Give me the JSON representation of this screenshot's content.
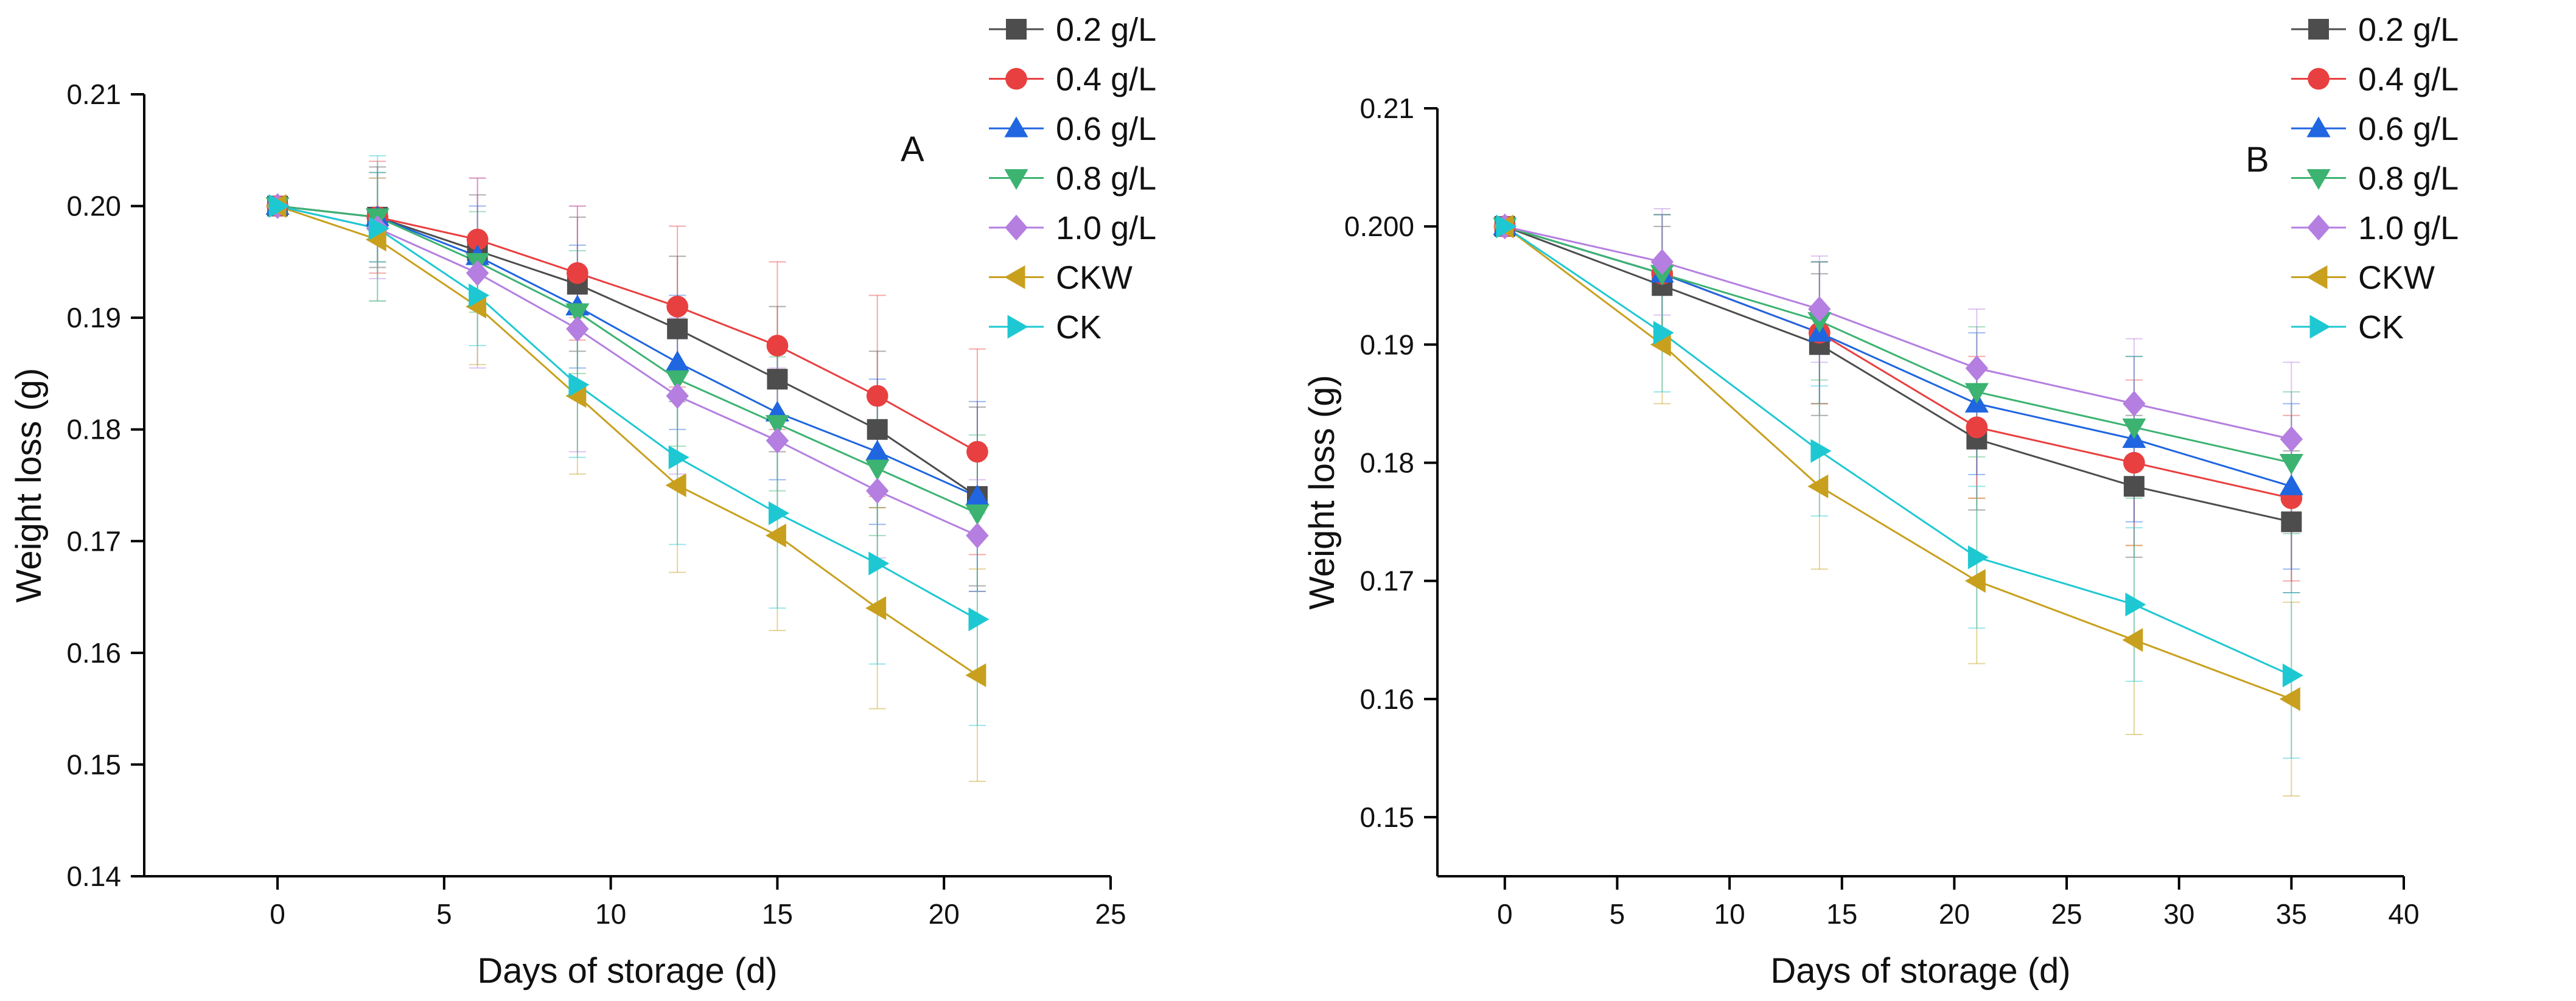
{
  "figure": {
    "panels_count": 2
  },
  "series_styles": [
    {
      "name": "0.2 g/L",
      "color": "#4d4d4d",
      "marker": "square"
    },
    {
      "name": "0.4 g/L",
      "color": "#e84040",
      "marker": "circle"
    },
    {
      "name": "0.6 g/L",
      "color": "#1f66e0",
      "marker": "triangle-up"
    },
    {
      "name": "0.8 g/L",
      "color": "#3cb371",
      "marker": "triangle-down"
    },
    {
      "name": "1.0 g/L",
      "color": "#b47fe0",
      "marker": "diamond"
    },
    {
      "name": "CKW",
      "color": "#c8a01e",
      "marker": "triangle-left"
    },
    {
      "name": "CK",
      "color": "#1ec8d2",
      "marker": "triangle-right"
    }
  ],
  "chart_data": [
    {
      "type": "line",
      "panel_label": "A",
      "title": "",
      "xlabel": "Days of storage (d)",
      "ylabel": "Weight loss (g)",
      "xlim": [
        -4,
        25
      ],
      "ylim": [
        0.14,
        0.21
      ],
      "xticks": [
        0,
        5,
        10,
        15,
        20,
        25
      ],
      "yticks": [
        0.14,
        0.15,
        0.16,
        0.17,
        0.18,
        0.19,
        0.2,
        0.21
      ],
      "xtick_labels": [
        "0",
        "5",
        "10",
        "15",
        "20",
        "25"
      ],
      "ytick_labels": [
        "0.14",
        "0.15",
        "0.16",
        "0.17",
        "0.18",
        "0.19",
        "0.20",
        "0.21"
      ],
      "legend_position": "top-right",
      "grid": false,
      "x": [
        0,
        3,
        6,
        9,
        12,
        15,
        18,
        21
      ],
      "series": [
        {
          "name": "0.2 g/L",
          "values": [
            0.2,
            0.199,
            0.196,
            0.193,
            0.189,
            0.1845,
            0.18,
            0.174
          ],
          "errors": [
            0.0,
            0.0045,
            0.005,
            0.006,
            0.0065,
            0.0065,
            0.007,
            0.008
          ]
        },
        {
          "name": "0.4 g/L",
          "values": [
            0.2,
            0.199,
            0.197,
            0.194,
            0.191,
            0.1875,
            0.183,
            0.178
          ],
          "errors": [
            0.0,
            0.005,
            0.0055,
            0.006,
            0.0072,
            0.0075,
            0.009,
            0.0092
          ]
        },
        {
          "name": "0.6 g/L",
          "values": [
            0.2,
            0.199,
            0.1955,
            0.191,
            0.186,
            0.1815,
            0.178,
            0.174
          ],
          "errors": [
            0.0,
            0.004,
            0.0045,
            0.0055,
            0.006,
            0.006,
            0.0065,
            0.0085
          ]
        },
        {
          "name": "0.8 g/L",
          "values": [
            0.2,
            0.199,
            0.195,
            0.1905,
            0.1845,
            0.1805,
            0.1765,
            0.1725
          ],
          "errors": [
            0.0,
            0.004,
            0.0045,
            0.0055,
            0.006,
            0.006,
            0.006,
            0.007
          ]
        },
        {
          "name": "1.0 g/L",
          "values": [
            0.2,
            0.198,
            0.194,
            0.189,
            0.183,
            0.179,
            0.1745,
            0.1705
          ],
          "errors": [
            0.0,
            0.0045,
            0.0085,
            0.011,
            0.007,
            0.0065,
            0.006,
            0.005
          ]
        },
        {
          "name": "CKW",
          "values": [
            0.2,
            0.197,
            0.191,
            0.183,
            0.175,
            0.1705,
            0.164,
            0.158
          ],
          "errors": [
            0.0,
            0.0055,
            0.0052,
            0.007,
            0.0078,
            0.0085,
            0.009,
            0.0095
          ]
        },
        {
          "name": "CK",
          "values": [
            0.2,
            0.198,
            0.192,
            0.184,
            0.1775,
            0.1725,
            0.168,
            0.163
          ],
          "errors": [
            0.0,
            0.0065,
            0.0045,
            0.0065,
            0.0078,
            0.0085,
            0.009,
            0.0095
          ]
        }
      ]
    },
    {
      "type": "line",
      "panel_label": "B",
      "title": "",
      "xlabel": "Days of storage (d)",
      "ylabel": "Weight loss (g)",
      "xlim": [
        -3,
        40
      ],
      "ylim": [
        0.145,
        0.21
      ],
      "xticks": [
        0,
        5,
        10,
        15,
        20,
        25,
        30,
        35,
        40
      ],
      "yticks": [
        0.15,
        0.16,
        0.17,
        0.18,
        0.19,
        0.2,
        0.21
      ],
      "xtick_labels": [
        "0",
        "5",
        "10",
        "15",
        "20",
        "25",
        "30",
        "35",
        "40"
      ],
      "ytick_labels": [
        "0.15",
        "0.16",
        "0.17",
        "0.18",
        "0.19",
        "0.200",
        "0.21"
      ],
      "legend_position": "top-right",
      "grid": false,
      "x": [
        0,
        7,
        14,
        21,
        28,
        35
      ],
      "series": [
        {
          "name": "0.2 g/L",
          "values": [
            0.2,
            0.195,
            0.19,
            0.182,
            0.178,
            0.175
          ],
          "errors": [
            0.0,
            0.005,
            0.006,
            0.006,
            0.006,
            0.006
          ]
        },
        {
          "name": "0.4 g/L",
          "values": [
            0.2,
            0.196,
            0.191,
            0.183,
            0.18,
            0.177
          ],
          "errors": [
            0.0,
            0.005,
            0.006,
            0.006,
            0.007,
            0.007
          ]
        },
        {
          "name": "0.6 g/L",
          "values": [
            0.2,
            0.196,
            0.191,
            0.185,
            0.182,
            0.178
          ],
          "errors": [
            0.0,
            0.005,
            0.006,
            0.006,
            0.007,
            0.007
          ]
        },
        {
          "name": "0.8 g/L",
          "values": [
            0.2,
            0.196,
            0.192,
            0.186,
            0.183,
            0.18
          ],
          "errors": [
            0.0,
            0.005,
            0.005,
            0.0055,
            0.006,
            0.006
          ]
        },
        {
          "name": "1.0 g/L",
          "values": [
            0.2,
            0.197,
            0.193,
            0.188,
            0.185,
            0.182
          ],
          "errors": [
            0.0,
            0.0045,
            0.0045,
            0.005,
            0.0055,
            0.0065
          ]
        },
        {
          "name": "CKW",
          "values": [
            0.2,
            0.19,
            0.178,
            0.17,
            0.165,
            0.16
          ],
          "errors": [
            0.0,
            0.005,
            0.007,
            0.007,
            0.008,
            0.0082
          ]
        },
        {
          "name": "CK",
          "values": [
            0.2,
            0.191,
            0.181,
            0.172,
            0.168,
            0.162
          ],
          "errors": [
            0.0,
            0.005,
            0.0055,
            0.006,
            0.0065,
            0.007
          ]
        }
      ]
    }
  ]
}
